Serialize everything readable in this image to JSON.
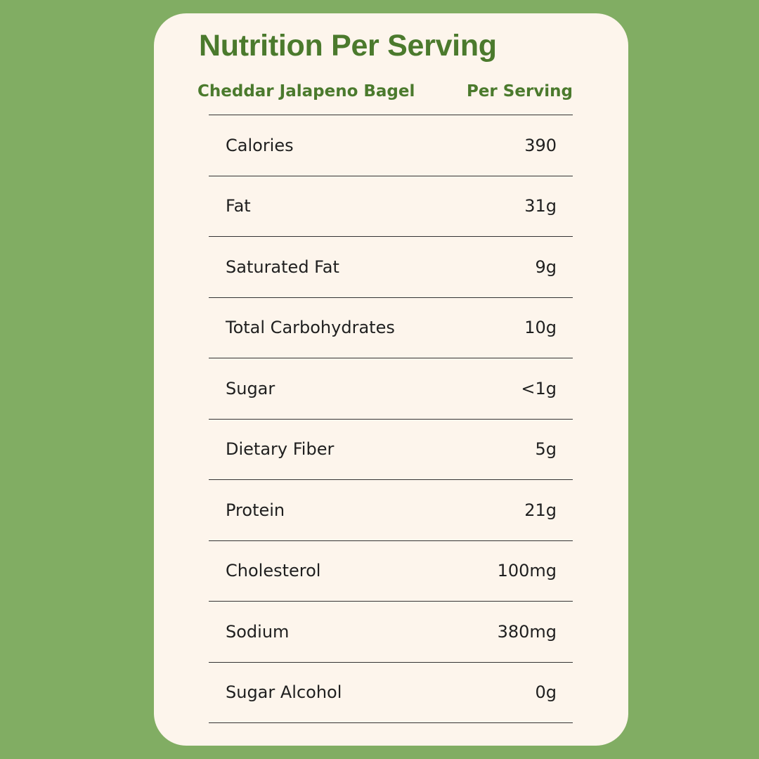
{
  "title": "Nutrition Per Serving",
  "header": {
    "product": "Cheddar Jalapeno Bagel",
    "column": "Per Serving"
  },
  "rows": [
    {
      "label": "Calories",
      "value": "390"
    },
    {
      "label": "Fat",
      "value": "31g"
    },
    {
      "label": "Saturated Fat",
      "value": "9g"
    },
    {
      "label": "Total Carbohydrates",
      "value": "10g"
    },
    {
      "label": "Sugar",
      "value": "<1g"
    },
    {
      "label": "Dietary Fiber",
      "value": "5g"
    },
    {
      "label": "Protein",
      "value": "21g"
    },
    {
      "label": "Cholesterol",
      "value": "100mg"
    },
    {
      "label": "Sodium",
      "value": "380mg"
    },
    {
      "label": "Sugar Alcohol",
      "value": "0g"
    }
  ],
  "colors": {
    "background": "#81ad63",
    "card": "#fdf5ec",
    "accent": "#4b7a2d",
    "text": "#1f1f1f"
  }
}
